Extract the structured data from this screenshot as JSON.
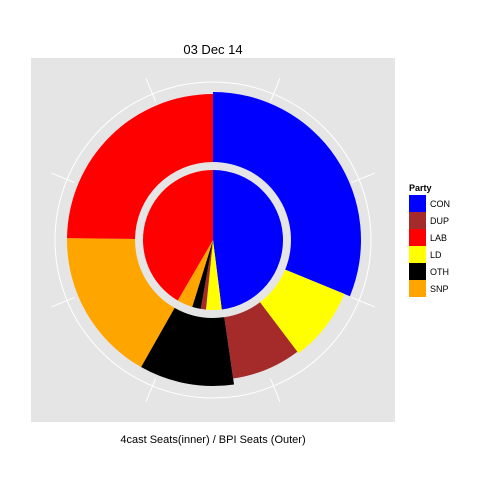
{
  "chart_data": {
    "type": "pie",
    "title": "03 Dec 14",
    "xlabel": "4cast Seats(inner) / BPI Seats (Outer)",
    "legend": {
      "title": "Party",
      "position": "right",
      "entries": [
        {
          "label": "CON",
          "color": "#0000FF"
        },
        {
          "label": "DUP",
          "color": "#A52A2A"
        },
        {
          "label": "LAB",
          "color": "#FF0000"
        },
        {
          "label": "LD",
          "color": "#FFFF00"
        },
        {
          "label": "OTH",
          "color": "#000000"
        },
        {
          "label": "SNP",
          "color": "#FFA500"
        }
      ]
    },
    "series": [
      {
        "ring": "inner",
        "slices": [
          {
            "party": "CON",
            "value": 48.0
          },
          {
            "party": "LD",
            "value": 3.6
          },
          {
            "party": "DUP",
            "value": 1.2
          },
          {
            "party": "OTH",
            "value": 2.0
          },
          {
            "party": "SNP",
            "value": 3.6
          },
          {
            "party": "LAB",
            "value": 41.6
          }
        ]
      },
      {
        "ring": "outer",
        "slices": [
          {
            "party": "CON",
            "value": 31.2
          },
          {
            "party": "LD",
            "value": 8.5
          },
          {
            "party": "DUP",
            "value": 8.0
          },
          {
            "party": "OTH",
            "value": 10.5
          },
          {
            "party": "SNP",
            "value": 17.0
          },
          {
            "party": "LAB",
            "value": 24.8
          }
        ]
      }
    ],
    "background_color": "#E5E5E5",
    "grid": true
  }
}
